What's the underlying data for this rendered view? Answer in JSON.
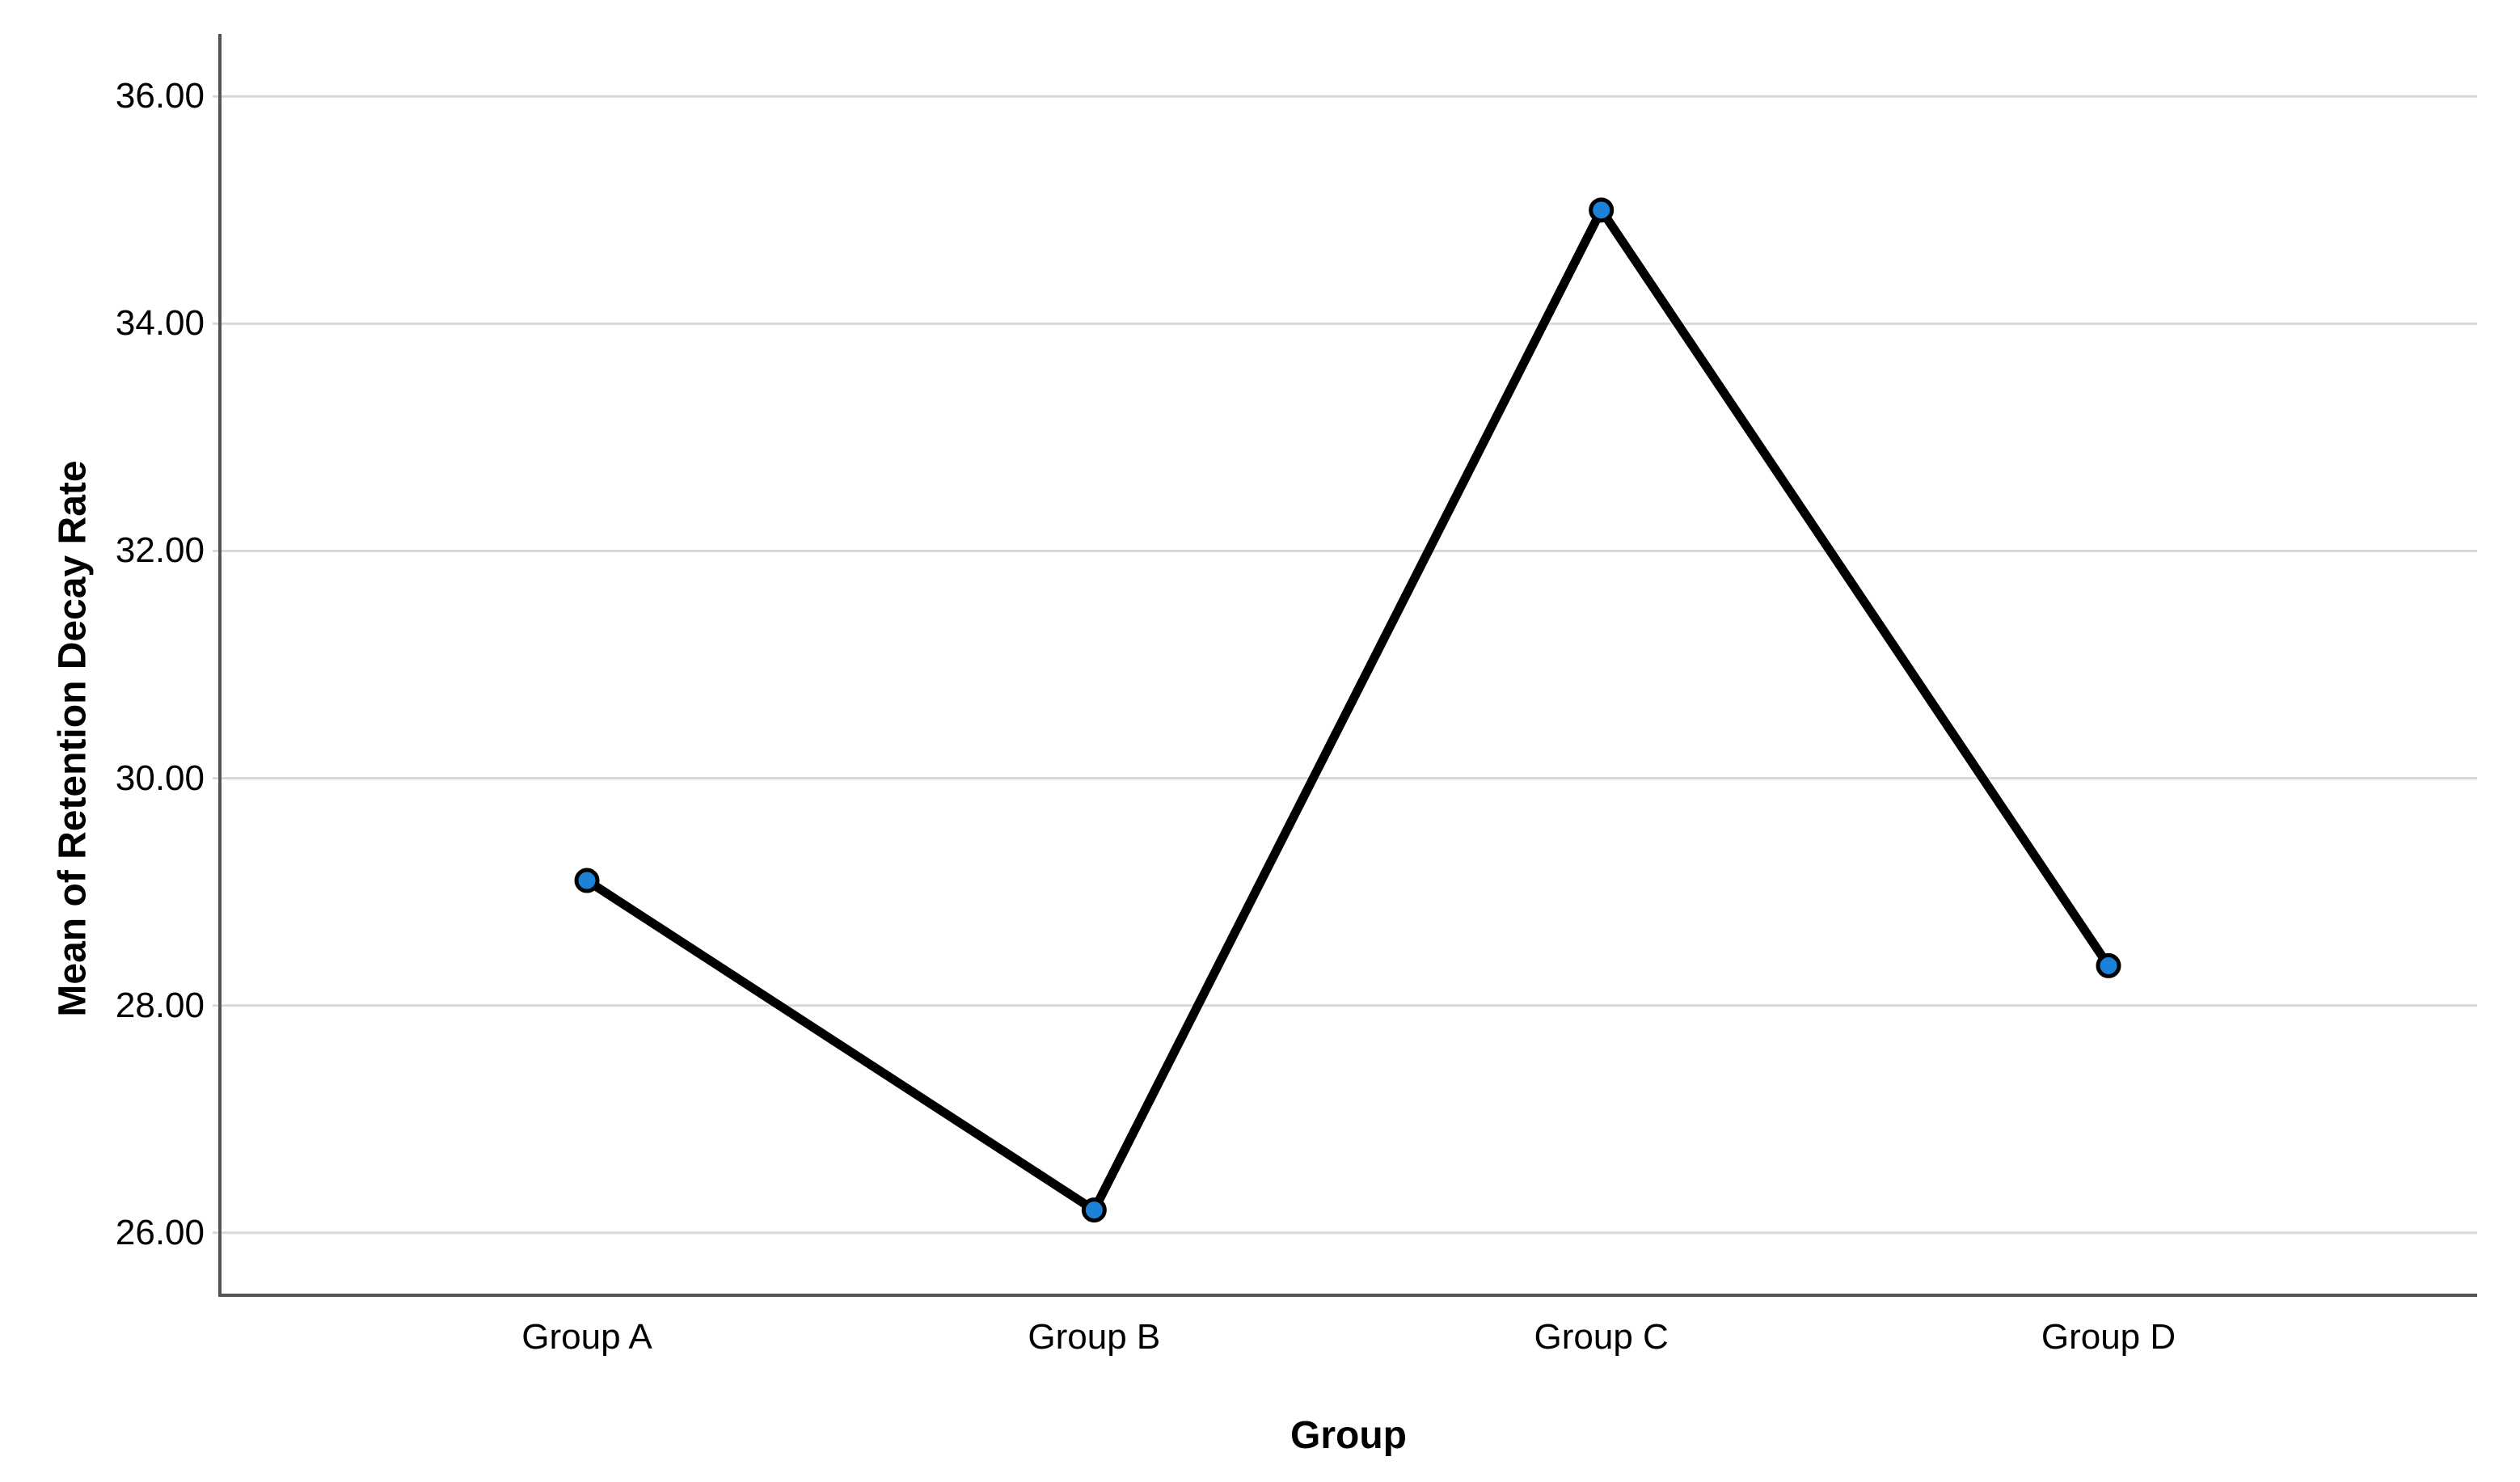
{
  "figure": {
    "background": "#ffffff"
  },
  "chart_data": {
    "type": "line",
    "title": "",
    "xlabel": "Group",
    "ylabel": "Mean of Retention Decay Rate",
    "categories": [
      "Group A",
      "Group B",
      "Group C",
      "Group D"
    ],
    "values": [
      29.1,
      26.2,
      35.0,
      28.35
    ],
    "yticks": [
      26,
      28,
      30,
      32,
      34,
      36
    ],
    "ytick_labels": [
      "26.00",
      "28.00",
      "30.00",
      "32.00",
      "34.00",
      "36.00"
    ],
    "ylim": [
      25.45,
      36.55
    ],
    "grid": true,
    "legend_position": "none",
    "line_color": "#000000",
    "marker_color": "#1b82d8",
    "marker_outline_color": "#000000",
    "axis_color": "#545454",
    "grid_color": "#d9d9d9"
  }
}
